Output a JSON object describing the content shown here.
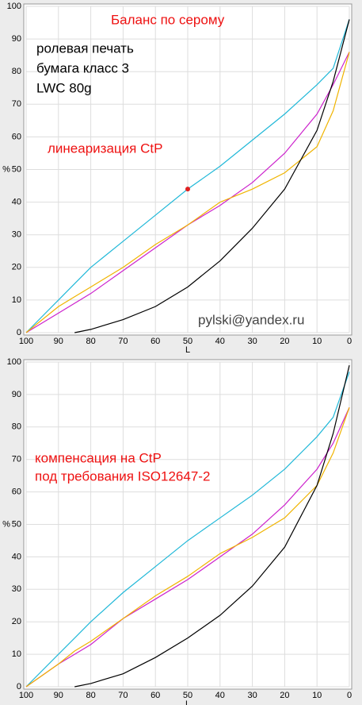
{
  "chart_data": [
    {
      "type": "line",
      "xlabel": "L",
      "ylabel": "%",
      "x": [
        100,
        90,
        85,
        80,
        70,
        60,
        50,
        40,
        30,
        20,
        10,
        5,
        0
      ],
      "xlim": [
        100,
        0
      ],
      "ylim": [
        0,
        100
      ],
      "xticks": [
        100,
        90,
        80,
        70,
        60,
        50,
        40,
        30,
        20,
        10,
        0
      ],
      "yticks": [
        0,
        10,
        20,
        30,
        40,
        50,
        60,
        70,
        80,
        90,
        100
      ],
      "grid": true,
      "series": [
        {
          "color": "#20b8d8",
          "values": [
            0,
            10,
            15,
            20,
            28,
            36,
            44,
            51,
            59,
            67,
            76,
            81,
            96
          ]
        },
        {
          "color": "#cc22cc",
          "values": [
            0,
            6,
            9,
            12,
            19,
            26,
            33,
            39,
            46,
            55,
            67,
            76,
            86
          ]
        },
        {
          "color": "#f0b400",
          "values": [
            0,
            8,
            11,
            14,
            20,
            27,
            33,
            40,
            44,
            49,
            57,
            68,
            86
          ]
        },
        {
          "color": "#000000",
          "values": [
            null,
            null,
            0,
            1,
            4,
            8,
            14,
            22,
            32,
            44,
            62,
            77,
            96
          ]
        }
      ],
      "highlight_point": {
        "x": 50,
        "y": 44,
        "color": "#e02020"
      },
      "annotations": [
        {
          "text": "Баланс по серому",
          "color": "#ee1111"
        },
        {
          "text": "ролевая печать",
          "color": "#000000"
        },
        {
          "text": "бумага класс 3",
          "color": "#000000"
        },
        {
          "text": "LWC 80g",
          "color": "#000000"
        },
        {
          "text": "линеаризация CtP",
          "color": "#ee1111"
        },
        {
          "text": "pylski@yandex.ru",
          "color": "#444444"
        }
      ]
    },
    {
      "type": "line",
      "xlabel": "L",
      "ylabel": "%",
      "x": [
        100,
        90,
        85,
        80,
        70,
        60,
        50,
        40,
        30,
        20,
        10,
        5,
        0
      ],
      "xlim": [
        100,
        0
      ],
      "ylim": [
        0,
        100
      ],
      "xticks": [
        100,
        90,
        80,
        70,
        60,
        50,
        40,
        30,
        20,
        10,
        0
      ],
      "yticks": [
        0,
        10,
        20,
        30,
        40,
        50,
        60,
        70,
        80,
        90,
        100
      ],
      "grid": true,
      "series": [
        {
          "color": "#20b8d8",
          "values": [
            0,
            10,
            15,
            20,
            29,
            37,
            45,
            52,
            59,
            67,
            77,
            83,
            97
          ]
        },
        {
          "color": "#cc22cc",
          "values": [
            0,
            7,
            10,
            13,
            21,
            27,
            33,
            40,
            47,
            56,
            67,
            75,
            86
          ]
        },
        {
          "color": "#f0b400",
          "values": [
            0,
            7,
            11,
            14,
            21,
            28,
            34,
            41,
            46,
            52,
            62,
            72,
            86
          ]
        },
        {
          "color": "#000000",
          "values": [
            null,
            null,
            0,
            1,
            4,
            9,
            15,
            22,
            31,
            43,
            62,
            78,
            99
          ]
        }
      ],
      "annotations": [
        {
          "text": "компенсация на CtP",
          "color": "#ee1111"
        },
        {
          "text": "под требования ISO12647-2",
          "color": "#ee1111"
        }
      ]
    }
  ]
}
